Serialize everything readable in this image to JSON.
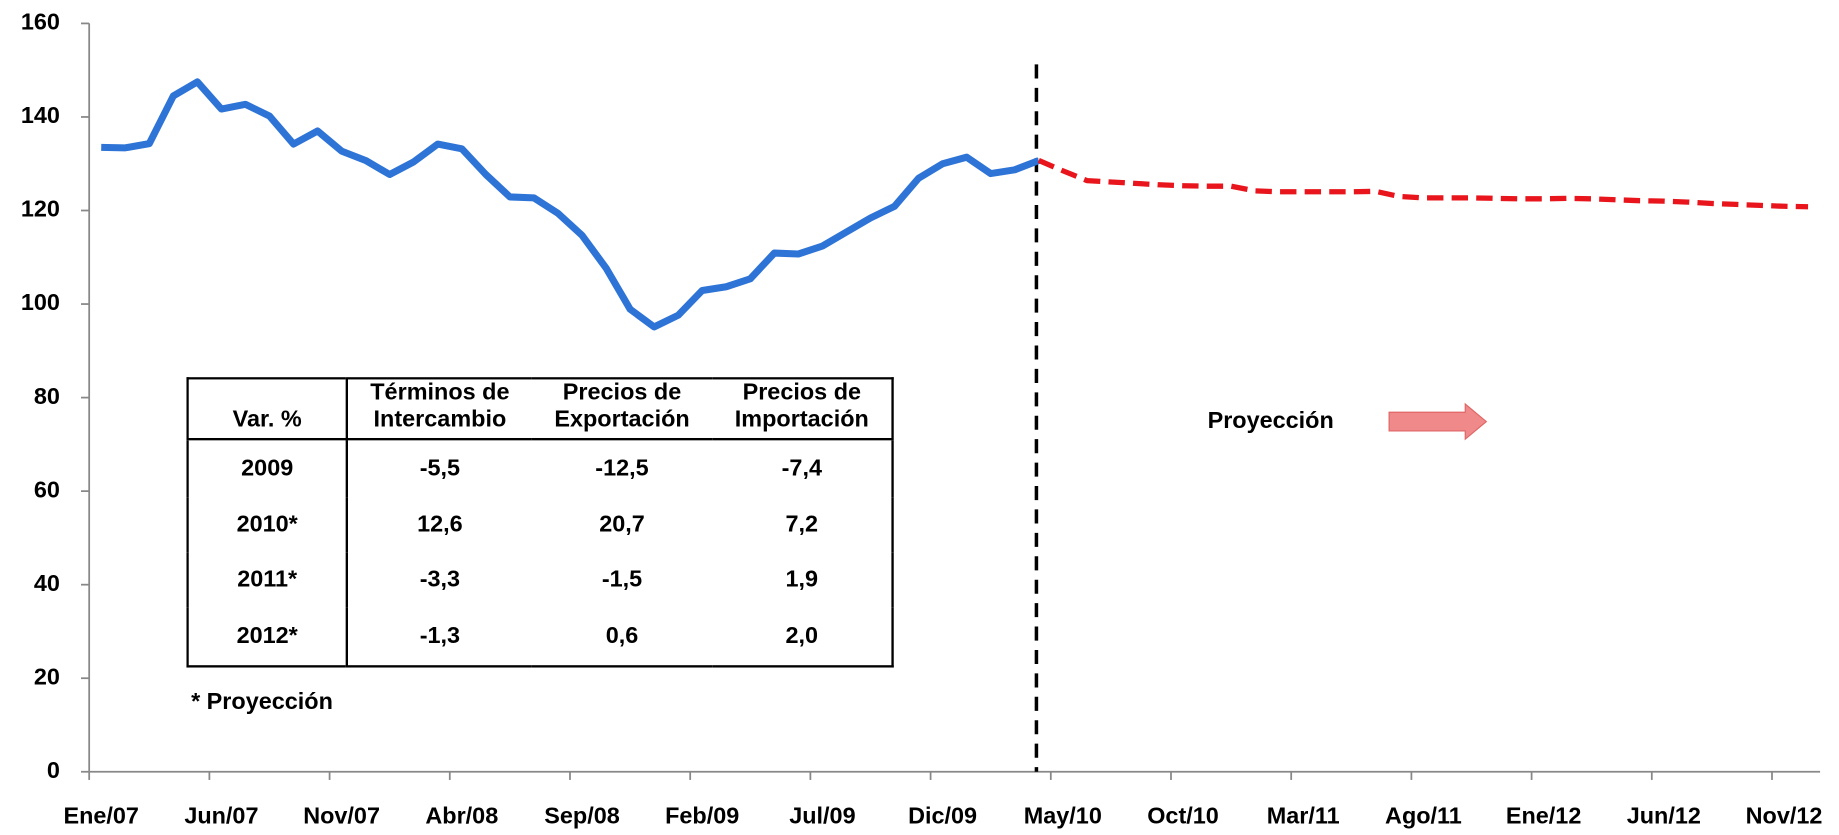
{
  "chart_data": {
    "type": "line",
    "annotation": "Proyección",
    "categories": [
      "Ene/07",
      null,
      null,
      null,
      null,
      "Jun/07",
      null,
      null,
      null,
      null,
      "Nov/07",
      null,
      null,
      null,
      null,
      "Abr/08",
      null,
      null,
      null,
      null,
      "Sep/08",
      null,
      null,
      null,
      null,
      "Feb/09",
      null,
      null,
      null,
      null,
      "Jul/09",
      null,
      null,
      null,
      null,
      "Dic/09",
      null,
      null,
      null,
      null,
      "May/10",
      null,
      null,
      null,
      null,
      "Oct/10",
      null,
      null,
      null,
      null,
      "Mar/11",
      null,
      null,
      null,
      null,
      "Ago/11",
      null,
      null,
      null,
      null,
      "Ene/12",
      null,
      null,
      null,
      null,
      "Jun/12",
      null,
      null,
      null,
      null,
      "Nov/12",
      null
    ],
    "series": [
      {
        "color": "#2e74d6",
        "dashed": false,
        "values": [
          133.5,
          133.4,
          134.3,
          144.5,
          147.5,
          141.7,
          142.7,
          140.2,
          134.2,
          137,
          132.7,
          130.7,
          127.7,
          130.4,
          134.2,
          133.2,
          127.7,
          122.9,
          122.7,
          119.4,
          114.7,
          107.7,
          98.9,
          95.1,
          97.6,
          102.9,
          103.7,
          105.4,
          110.9,
          110.7,
          112.4,
          115.4,
          118.4,
          120.9,
          126.9,
          130,
          131.4,
          127.9,
          128.7,
          130.7,
          null,
          null,
          null,
          null,
          null,
          null,
          null,
          null,
          null,
          null,
          null,
          null,
          null,
          null,
          null,
          null,
          null,
          null,
          null,
          null,
          null,
          null,
          null,
          null,
          null,
          null,
          null,
          null,
          null,
          null,
          null,
          null
        ]
      },
      {
        "color": "#e8161c",
        "dashed": true,
        "values": [
          null,
          null,
          null,
          null,
          null,
          null,
          null,
          null,
          null,
          null,
          null,
          null,
          null,
          null,
          null,
          null,
          null,
          null,
          null,
          null,
          null,
          null,
          null,
          null,
          null,
          null,
          null,
          null,
          null,
          null,
          null,
          null,
          null,
          null,
          null,
          null,
          null,
          null,
          null,
          130.7,
          128.5,
          126.4,
          126.1,
          125.8,
          125.5,
          125.3,
          125.2,
          125.2,
          124.2,
          124,
          124,
          124,
          124,
          124.1,
          123,
          122.7,
          122.7,
          122.7,
          122.6,
          122.5,
          122.5,
          122.6,
          122.5,
          122.3,
          122.1,
          122,
          121.8,
          121.5,
          121.3,
          121.1,
          120.9,
          120.8
        ]
      }
    ],
    "ylim": [
      0,
      160
    ],
    "yticks": [
      0,
      20,
      40,
      60,
      80,
      100,
      120,
      140,
      160
    ],
    "grid": false
  },
  "table": {
    "header": [
      "Var. %",
      "Términos de Intercambio",
      "Precios de Exportación",
      "Precios de Importación"
    ],
    "rows": [
      [
        "2009",
        "-5,5",
        "-12,5",
        "-7,4"
      ],
      [
        "2010*",
        "12,6",
        "20,7",
        "7,2"
      ],
      [
        "2011*",
        "-3,3",
        "-1,5",
        "1,9"
      ],
      [
        "2012*",
        "-1,3",
        "0,6",
        "2,0"
      ]
    ],
    "note": "* Proyección"
  }
}
